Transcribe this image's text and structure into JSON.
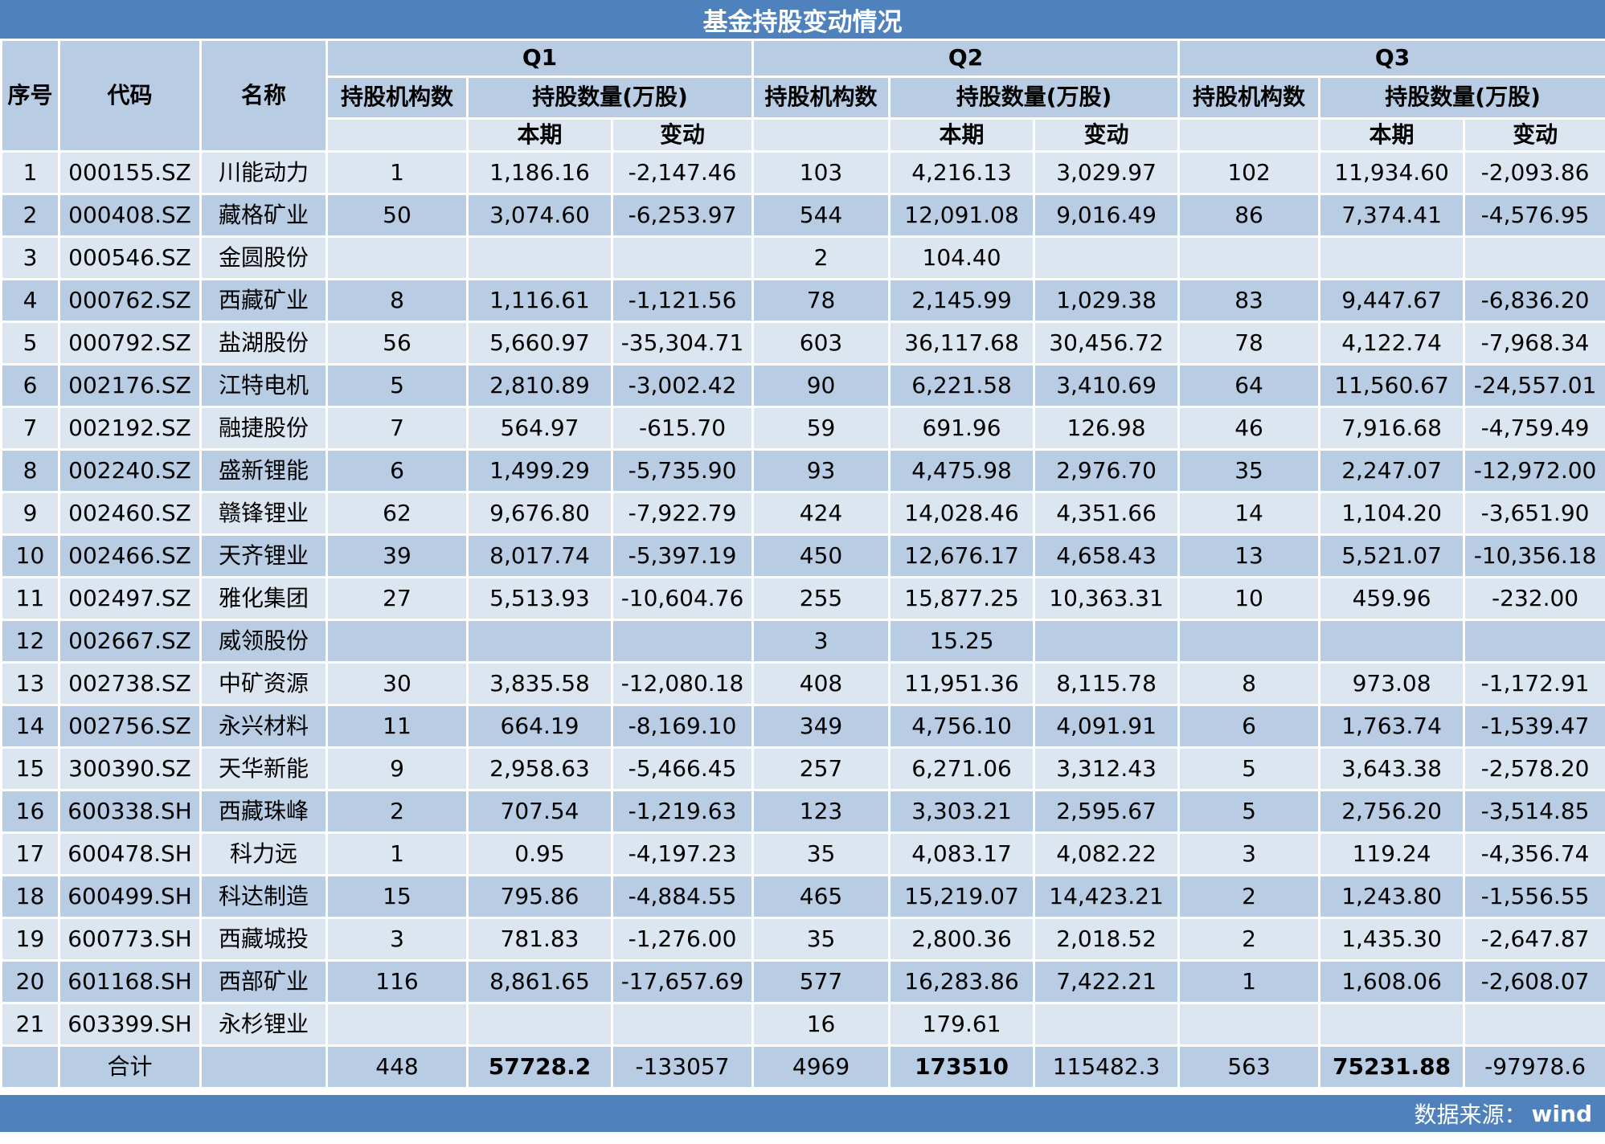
{
  "title": "基金持股变动情况",
  "colors": {
    "accent": "#4f81bd",
    "band_dark": "#b8cce4",
    "band_light": "#dce6f1",
    "grid": "#ffffff"
  },
  "header": {
    "seq": "序号",
    "code": "代码",
    "name": "名称",
    "quarters": [
      "Q1",
      "Q2",
      "Q3"
    ],
    "inst_count": "持股机构数",
    "share_qty": "持股数量(万股)",
    "current": "本期",
    "change": "变动"
  },
  "chart_data": {
    "type": "table",
    "title": "基金持股变动情况",
    "columns": [
      "序号",
      "代码",
      "名称",
      "Q1 持股机构数",
      "Q1 持股数量(万股) 本期",
      "Q1 持股数量(万股) 变动",
      "Q2 持股机构数",
      "Q2 持股数量(万股) 本期",
      "Q2 持股数量(万股) 变动",
      "Q3 持股机构数",
      "Q3 持股数量(万股) 本期",
      "Q3 持股数量(万股) 变动"
    ],
    "rows": [
      [
        "1",
        "000155.SZ",
        "川能动力",
        "1",
        "1,186.16",
        "-2,147.46",
        "103",
        "4,216.13",
        "3,029.97",
        "102",
        "11,934.60",
        "-2,093.86"
      ],
      [
        "2",
        "000408.SZ",
        "藏格矿业",
        "50",
        "3,074.60",
        "-6,253.97",
        "544",
        "12,091.08",
        "9,016.49",
        "86",
        "7,374.41",
        "-4,576.95"
      ],
      [
        "3",
        "000546.SZ",
        "金圆股份",
        "",
        "",
        "",
        "2",
        "104.40",
        "",
        "",
        "",
        ""
      ],
      [
        "4",
        "000762.SZ",
        "西藏矿业",
        "8",
        "1,116.61",
        "-1,121.56",
        "78",
        "2,145.99",
        "1,029.38",
        "83",
        "9,447.67",
        "-6,836.20"
      ],
      [
        "5",
        "000792.SZ",
        "盐湖股份",
        "56",
        "5,660.97",
        "-35,304.71",
        "603",
        "36,117.68",
        "30,456.72",
        "78",
        "4,122.74",
        "-7,968.34"
      ],
      [
        "6",
        "002176.SZ",
        "江特电机",
        "5",
        "2,810.89",
        "-3,002.42",
        "90",
        "6,221.58",
        "3,410.69",
        "64",
        "11,560.67",
        "-24,557.01"
      ],
      [
        "7",
        "002192.SZ",
        "融捷股份",
        "7",
        "564.97",
        "-615.70",
        "59",
        "691.96",
        "126.98",
        "46",
        "7,916.68",
        "-4,759.49"
      ],
      [
        "8",
        "002240.SZ",
        "盛新锂能",
        "6",
        "1,499.29",
        "-5,735.90",
        "93",
        "4,475.98",
        "2,976.70",
        "35",
        "2,247.07",
        "-12,972.00"
      ],
      [
        "9",
        "002460.SZ",
        "赣锋锂业",
        "62",
        "9,676.80",
        "-7,922.79",
        "424",
        "14,028.46",
        "4,351.66",
        "14",
        "1,104.20",
        "-3,651.90"
      ],
      [
        "10",
        "002466.SZ",
        "天齐锂业",
        "39",
        "8,017.74",
        "-5,397.19",
        "450",
        "12,676.17",
        "4,658.43",
        "13",
        "5,521.07",
        "-10,356.18"
      ],
      [
        "11",
        "002497.SZ",
        "雅化集团",
        "27",
        "5,513.93",
        "-10,604.76",
        "255",
        "15,877.25",
        "10,363.31",
        "10",
        "459.96",
        "-232.00"
      ],
      [
        "12",
        "002667.SZ",
        "威领股份",
        "",
        "",
        "",
        "3",
        "15.25",
        "",
        "",
        "",
        ""
      ],
      [
        "13",
        "002738.SZ",
        "中矿资源",
        "30",
        "3,835.58",
        "-12,080.18",
        "408",
        "11,951.36",
        "8,115.78",
        "8",
        "973.08",
        "-1,172.91"
      ],
      [
        "14",
        "002756.SZ",
        "永兴材料",
        "11",
        "664.19",
        "-8,169.10",
        "349",
        "4,756.10",
        "4,091.91",
        "6",
        "1,763.74",
        "-1,539.47"
      ],
      [
        "15",
        "300390.SZ",
        "天华新能",
        "9",
        "2,958.63",
        "-5,466.45",
        "257",
        "6,271.06",
        "3,312.43",
        "5",
        "3,643.38",
        "-2,578.20"
      ],
      [
        "16",
        "600338.SH",
        "西藏珠峰",
        "2",
        "707.54",
        "-1,219.63",
        "123",
        "3,303.21",
        "2,595.67",
        "5",
        "2,756.20",
        "-3,514.85"
      ],
      [
        "17",
        "600478.SH",
        "科力远",
        "1",
        "0.95",
        "-4,197.23",
        "35",
        "4,083.17",
        "4,082.22",
        "3",
        "119.24",
        "-4,356.74"
      ],
      [
        "18",
        "600499.SH",
        "科达制造",
        "15",
        "795.86",
        "-4,884.55",
        "465",
        "15,219.07",
        "14,423.21",
        "2",
        "1,243.80",
        "-1,556.55"
      ],
      [
        "19",
        "600773.SH",
        "西藏城投",
        "3",
        "781.83",
        "-1,276.00",
        "35",
        "2,800.36",
        "2,018.52",
        "2",
        "1,435.30",
        "-2,647.87"
      ],
      [
        "20",
        "601168.SH",
        "西部矿业",
        "116",
        "8,861.65",
        "-17,657.69",
        "577",
        "16,283.86",
        "7,422.21",
        "1",
        "1,608.06",
        "-2,608.07"
      ],
      [
        "21",
        "603399.SH",
        "永杉锂业",
        "",
        "",
        "",
        "16",
        "179.61",
        "",
        "",
        "",
        ""
      ]
    ],
    "total": {
      "label": "合计",
      "values": [
        "448",
        "57728.2",
        "-133057",
        "4969",
        "173510",
        "115482.3",
        "563",
        "75231.88",
        "-97978.6"
      ]
    }
  },
  "footer": {
    "source_label": "数据来源：",
    "source_value": "wind"
  }
}
